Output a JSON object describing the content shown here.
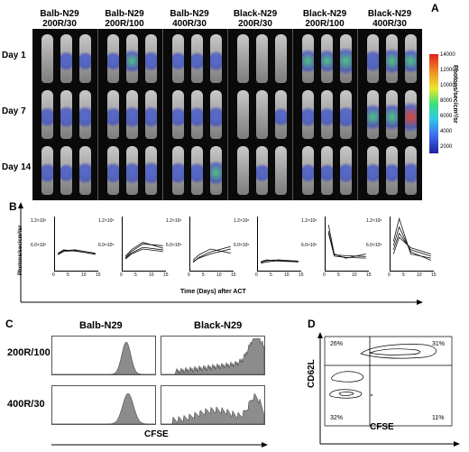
{
  "panels": {
    "a": "A",
    "b": "B",
    "c": "C",
    "d": "D"
  },
  "panel_a": {
    "groups": [
      {
        "line1": "Balb-N29",
        "line2": "200R/30"
      },
      {
        "line1": "Balb-N29",
        "line2": "200R/100"
      },
      {
        "line1": "Balb-N29",
        "line2": "400R/30"
      },
      {
        "line1": "Black-N29",
        "line2": "200R/30"
      },
      {
        "line1": "Black-N29",
        "line2": "200R/100"
      },
      {
        "line1": "Black-N29",
        "line2": "400R/30"
      }
    ],
    "days": [
      "Day 1",
      "Day 7",
      "Day 14"
    ],
    "colorbar_title": "Photons/sec/cm²/sr",
    "colorbar_ticks": [
      "14000",
      "12000",
      "10000",
      "8000",
      "6000",
      "4000",
      "2000"
    ]
  },
  "chart_data": {
    "type": "line",
    "ylabel": "Photons/sec/cm²/sr",
    "xlabel": "Time (Days) after ACT",
    "y_ticks": [
      "1.2×10⁶",
      "6.0×10⁵"
    ],
    "x_ticks": [
      "0",
      "5",
      "10",
      "15"
    ],
    "ylim": [
      0,
      1300000
    ],
    "xlim": [
      0,
      15
    ],
    "x": [
      1,
      3,
      7,
      14
    ],
    "subplots": [
      {
        "series": [
          [
            400000,
            480000,
            500000,
            420000
          ],
          [
            420000,
            500000,
            470000,
            400000
          ],
          [
            380000,
            460000,
            480000,
            390000
          ]
        ]
      },
      {
        "series": [
          [
            300000,
            420000,
            560000,
            500000
          ],
          [
            350000,
            500000,
            680000,
            540000
          ],
          [
            320000,
            460000,
            640000,
            600000
          ],
          [
            280000,
            400000,
            520000,
            460000
          ]
        ]
      },
      {
        "series": [
          [
            200000,
            320000,
            450000,
            580000
          ],
          [
            250000,
            380000,
            520000,
            420000
          ],
          [
            220000,
            300000,
            400000,
            520000
          ]
        ]
      },
      {
        "series": [
          [
            200000,
            240000,
            260000,
            230000
          ],
          [
            180000,
            210000,
            240000,
            220000
          ],
          [
            220000,
            260000,
            230000,
            210000
          ]
        ]
      },
      {
        "series": [
          [
            1100000,
            400000,
            300000,
            400000
          ],
          [
            900000,
            350000,
            320000,
            300000
          ],
          [
            950000,
            380000,
            360000,
            340000
          ]
        ]
      },
      {
        "series": [
          [
            700000,
            1250000,
            400000,
            300000
          ],
          [
            500000,
            900000,
            500000,
            350000
          ],
          [
            600000,
            1050000,
            450000,
            250000
          ],
          [
            400000,
            800000,
            550000,
            400000
          ]
        ]
      }
    ]
  },
  "panel_c": {
    "col1": "Balb-N29",
    "col2": "Black-N29",
    "row1": "200R/100",
    "row2": "400R/30",
    "xlabel": "CFSE"
  },
  "panel_d": {
    "ylabel": "CD62L",
    "xlabel": "CFSE",
    "q_tl": "26%",
    "q_tr": "31%",
    "q_bl": "32%",
    "q_br": "11%"
  }
}
